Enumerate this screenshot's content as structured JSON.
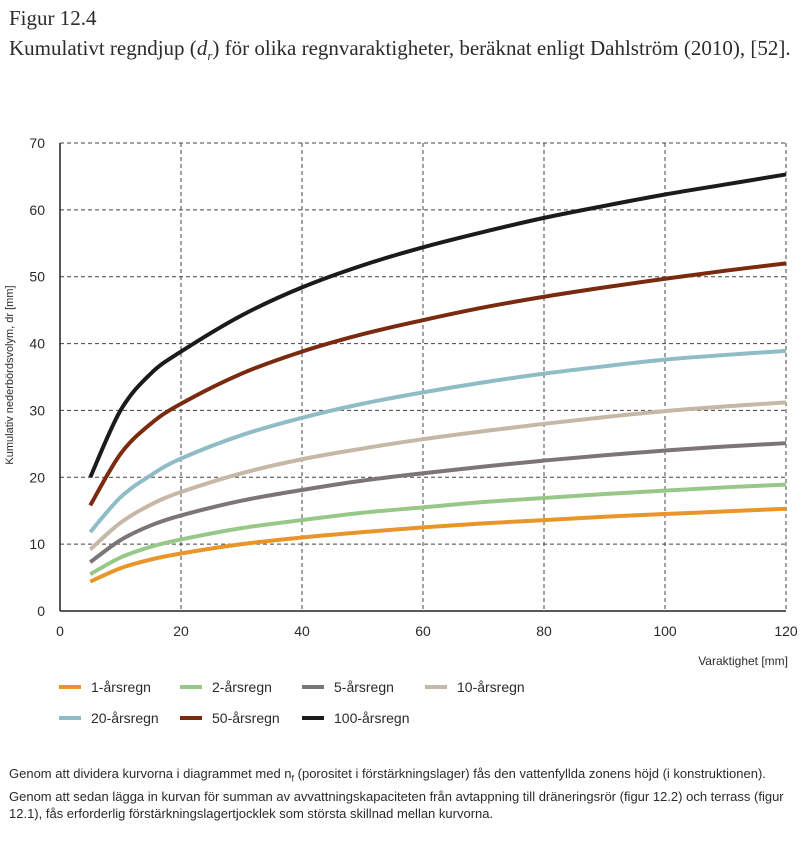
{
  "figure": {
    "label": "Figur 12.4",
    "title_pre": "Kumulativt regndjup (",
    "title_var": "d",
    "title_sub": "r",
    "title_post": ") för olika regnvaraktigheter, beräknat enligt Dahlström (2010), [52]."
  },
  "caption": {
    "part1": "Genom att dividera kurvorna i diagrammet med n",
    "sub": "f",
    "part2": " (porositet i förstärkningslager) fås den vattenfyllda zonens höjd (i konstruktionen). Genom att sedan lägga in kurvan för summan av avvattningskapaciteten från avtappning till dräneringsrör (figur 12.2) och terrass (figur 12.1), fås erforderlig förstärkningslagertjocklek som största skillnad mellan kurvorna."
  },
  "chart_data": {
    "type": "line",
    "xlabel": "Varaktighet [mm]",
    "ylabel": "Kumulativ nederbördsvolym, dr [mm]",
    "xlim": [
      0,
      120
    ],
    "ylim": [
      0,
      70
    ],
    "xticks": [
      0,
      20,
      40,
      60,
      80,
      100,
      120
    ],
    "yticks": [
      0,
      10,
      20,
      30,
      40,
      50,
      60,
      70
    ],
    "grid": true,
    "legend_position": "bottom",
    "x": [
      5,
      10,
      15,
      20,
      30,
      40,
      50,
      60,
      70,
      80,
      90,
      100,
      110,
      120
    ],
    "series": [
      {
        "name": "1-årsregn",
        "color": "#e8952a",
        "values": [
          4.4,
          6.4,
          7.7,
          8.6,
          10.0,
          11.0,
          11.8,
          12.5,
          13.1,
          13.6,
          14.1,
          14.5,
          14.9,
          15.3
        ]
      },
      {
        "name": "2-årsregn",
        "color": "#98c888",
        "values": [
          5.5,
          8.0,
          9.6,
          10.7,
          12.4,
          13.6,
          14.7,
          15.5,
          16.3,
          16.9,
          17.5,
          18.0,
          18.5,
          18.9
        ]
      },
      {
        "name": "5-årsregn",
        "color": "#7d7575",
        "values": [
          7.3,
          10.6,
          12.8,
          14.3,
          16.5,
          18.1,
          19.5,
          20.6,
          21.6,
          22.5,
          23.3,
          24.0,
          24.6,
          25.1
        ]
      },
      {
        "name": "10-årsregn",
        "color": "#c6b7a6",
        "values": [
          9.2,
          13.2,
          15.9,
          17.8,
          20.6,
          22.7,
          24.3,
          25.7,
          26.9,
          28.0,
          29.0,
          29.9,
          30.6,
          31.2
        ]
      },
      {
        "name": "20-årsregn",
        "color": "#8fbcc6",
        "values": [
          11.8,
          17.0,
          20.3,
          22.8,
          26.3,
          28.9,
          31.0,
          32.7,
          34.2,
          35.5,
          36.6,
          37.6,
          38.3,
          38.9
        ]
      },
      {
        "name": "50-årsregn",
        "color": "#7a2a0f",
        "values": [
          15.8,
          23.5,
          28.0,
          31.0,
          35.5,
          38.8,
          41.4,
          43.5,
          45.4,
          47.0,
          48.4,
          49.7,
          50.9,
          52.0
        ]
      },
      {
        "name": "100-årsregn",
        "color": "#1b1b1b",
        "values": [
          20.0,
          30.0,
          35.5,
          38.8,
          44.2,
          48.4,
          51.7,
          54.4,
          56.7,
          58.8,
          60.6,
          62.3,
          63.8,
          65.3
        ]
      }
    ]
  }
}
